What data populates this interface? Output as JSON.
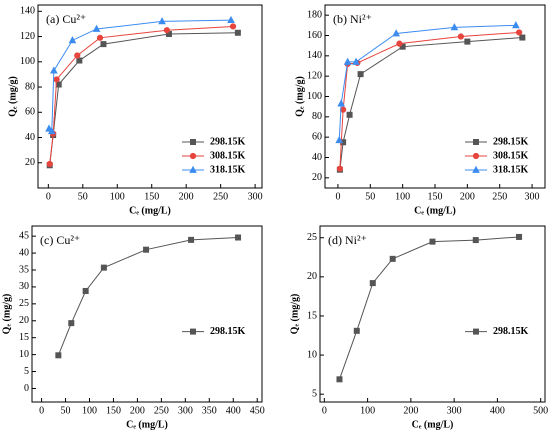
{
  "chart_data": [
    {
      "type": "line",
      "title": "(a) Cu²⁺",
      "x_label": "Cₑ (mg/L)",
      "y_label": "Qₑ (mg/g)",
      "xlim": [
        -15,
        310
      ],
      "ylim": [
        0,
        145
      ],
      "xticks": [
        0,
        50,
        100,
        150,
        200,
        250,
        300
      ],
      "yticks": [
        20,
        40,
        60,
        80,
        100,
        120,
        140
      ],
      "legend": "lower right",
      "series": [
        {
          "name": "298.15K",
          "color": "#555555",
          "marker": "square",
          "x": [
            2,
            7,
            15,
            45,
            80,
            175,
            275
          ],
          "values": [
            18,
            42,
            82,
            101,
            114,
            122,
            123
          ]
        },
        {
          "name": "308.15K",
          "color": "#e6443c",
          "marker": "circle",
          "x": [
            2,
            7,
            12,
            42,
            75,
            172,
            268
          ],
          "values": [
            19,
            43,
            86,
            105,
            119,
            125,
            128
          ]
        },
        {
          "name": "318.15K",
          "color": "#3c8cf0",
          "marker": "triangle",
          "x": [
            1,
            5,
            8,
            35,
            70,
            165,
            265
          ],
          "values": [
            47,
            45,
            93,
            117,
            126,
            132,
            133
          ]
        }
      ]
    },
    {
      "type": "line",
      "title": "(b) Ni²⁺",
      "x_label": "Cₑ (mg/L)",
      "y_label": "Qₑ (mg/g)",
      "xlim": [
        -20,
        320
      ],
      "ylim": [
        10,
        190
      ],
      "xticks": [
        0,
        50,
        100,
        150,
        200,
        250,
        300
      ],
      "yticks": [
        20,
        40,
        60,
        80,
        100,
        120,
        140,
        160,
        180
      ],
      "legend": "lower right",
      "series": [
        {
          "name": "298.15K",
          "color": "#555555",
          "marker": "square",
          "x": [
            3,
            8,
            18,
            35,
            100,
            200,
            285
          ],
          "values": [
            28,
            55,
            82,
            122,
            149,
            154,
            158
          ]
        },
        {
          "name": "308.15K",
          "color": "#e6443c",
          "marker": "circle",
          "x": [
            3,
            8,
            15,
            30,
            95,
            190,
            280
          ],
          "values": [
            29,
            87,
            132,
            133,
            152,
            159,
            163
          ]
        },
        {
          "name": "318.15K",
          "color": "#3c8cf0",
          "marker": "triangle",
          "x": [
            2,
            5,
            15,
            28,
            90,
            180,
            275
          ],
          "values": [
            57,
            93,
            134,
            134,
            162,
            168,
            170
          ]
        }
      ]
    },
    {
      "type": "line",
      "title": "(c) Cu²⁺",
      "x_label": "Cₑ (mg/L)",
      "y_label": "Qₑ (mg/g)",
      "xlim": [
        -20,
        460
      ],
      "ylim": [
        -4,
        48
      ],
      "xticks": [
        0,
        50,
        100,
        150,
        200,
        250,
        300,
        350,
        400,
        450
      ],
      "yticks": [
        0,
        5,
        10,
        15,
        20,
        25,
        30,
        35,
        40,
        45
      ],
      "legend": "lower right",
      "series": [
        {
          "name": "298.15K",
          "color": "#555555",
          "marker": "square",
          "x": [
            35,
            62,
            92,
            130,
            218,
            312,
            410
          ],
          "values": [
            9.8,
            19.3,
            28.8,
            35.7,
            41.0,
            43.9,
            44.6
          ]
        }
      ]
    },
    {
      "type": "line",
      "title": "(d) Ni²⁺",
      "x_label": "Cₑ (mg/L)",
      "y_label": "Qₑ (mg/g)",
      "xlim": [
        -10,
        510
      ],
      "ylim": [
        4,
        26.5
      ],
      "xticks": [
        0,
        100,
        200,
        300,
        400,
        500
      ],
      "yticks": [
        5,
        10,
        15,
        20,
        25
      ],
      "legend": "lower right",
      "series": [
        {
          "name": "298.15K",
          "color": "#555555",
          "marker": "square",
          "x": [
            35,
            75,
            112,
            158,
            250,
            350,
            450
          ],
          "values": [
            6.9,
            13.1,
            19.2,
            22.3,
            24.5,
            24.7,
            25.1
          ]
        }
      ]
    }
  ]
}
